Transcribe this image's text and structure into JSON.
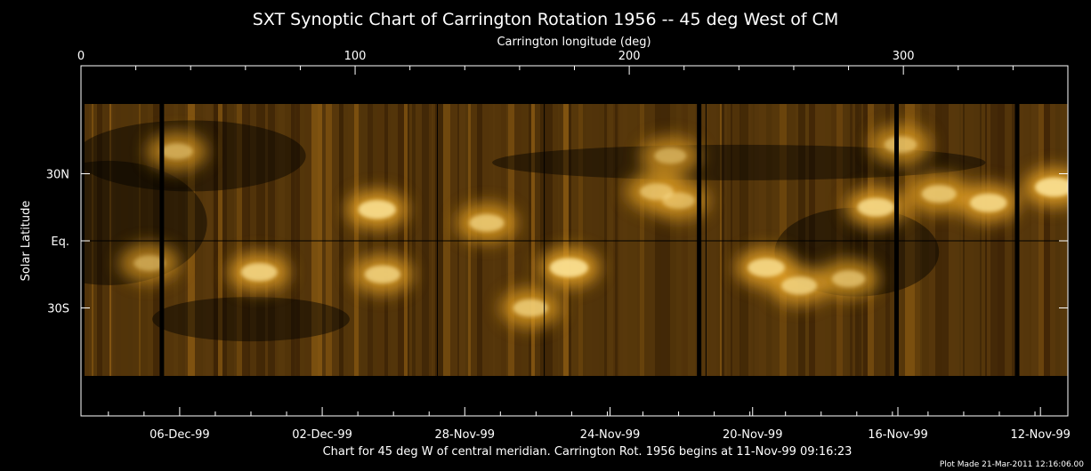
{
  "chart_data": {
    "type": "heatmap",
    "title": "SXT Synoptic Chart of Carrington Rotation 1956 -- 45 deg West of CM",
    "top_axis": {
      "label": "Carrington longitude (deg)",
      "range": [
        0,
        360
      ],
      "ticks": [
        {
          "value": 0,
          "label": "0"
        },
        {
          "value": 100,
          "label": "100"
        },
        {
          "value": 200,
          "label": "200"
        },
        {
          "value": 300,
          "label": "300"
        }
      ]
    },
    "y_axis": {
      "label": "Solar Latitude",
      "ticks": [
        {
          "value": 30,
          "label": "30N"
        },
        {
          "value": 0,
          "label": "Eq."
        },
        {
          "value": -30,
          "label": "30S"
        }
      ]
    },
    "bottom_axis": {
      "ticks": [
        {
          "longitude": 36,
          "label": "06-Dec-99"
        },
        {
          "longitude": 88,
          "label": "02-Dec-99"
        },
        {
          "longitude": 140,
          "label": "28-Nov-99"
        },
        {
          "longitude": 193,
          "label": "24-Nov-99"
        },
        {
          "longitude": 245,
          "label": "20-Nov-99"
        },
        {
          "longitude": 298,
          "label": "16-Nov-99"
        },
        {
          "longitude": 350,
          "label": "12-Nov-99"
        }
      ]
    },
    "footer": "Chart for 45 deg W of central meridian.  Carrington Rot. 1956 begins at 11-Nov-99 09:16:23",
    "stamp": "Plot Made 21-Mar-2011 12:16:06.00",
    "colormap": [
      "#000000",
      "#3d2406",
      "#8a5a12",
      "#d89822",
      "#ffeaa0"
    ],
    "bright_regions": [
      {
        "lon": 108,
        "lat": 14,
        "intensity": 0.9
      },
      {
        "lon": 148,
        "lat": 8,
        "intensity": 0.7
      },
      {
        "lon": 210,
        "lat": 22,
        "intensity": 0.6
      },
      {
        "lon": 218,
        "lat": 18,
        "intensity": 0.55
      },
      {
        "lon": 290,
        "lat": 15,
        "intensity": 0.85
      },
      {
        "lon": 331,
        "lat": 17,
        "intensity": 0.85
      },
      {
        "lon": 355,
        "lat": 24,
        "intensity": 0.95
      },
      {
        "lon": 313,
        "lat": 21,
        "intensity": 0.7
      },
      {
        "lon": 65,
        "lat": -14,
        "intensity": 0.8
      },
      {
        "lon": 110,
        "lat": -15,
        "intensity": 0.75
      },
      {
        "lon": 178,
        "lat": -12,
        "intensity": 0.95
      },
      {
        "lon": 164,
        "lat": -30,
        "intensity": 0.7
      },
      {
        "lon": 250,
        "lat": -12,
        "intensity": 0.85
      },
      {
        "lon": 262,
        "lat": -20,
        "intensity": 0.75
      },
      {
        "lon": 280,
        "lat": -17,
        "intensity": 0.6
      },
      {
        "lon": 25,
        "lat": -10,
        "intensity": 0.45
      },
      {
        "lon": 35,
        "lat": 40,
        "intensity": 0.5
      },
      {
        "lon": 215,
        "lat": 38,
        "intensity": 0.5
      },
      {
        "lon": 299,
        "lat": 43,
        "intensity": 0.55
      }
    ],
    "data_gaps_longitude": [
      29.5,
      225.5,
      297.5,
      341.5
    ],
    "grid_longitudes": [
      130,
      169,
      228
    ],
    "grid_latitudes": [
      0
    ]
  }
}
